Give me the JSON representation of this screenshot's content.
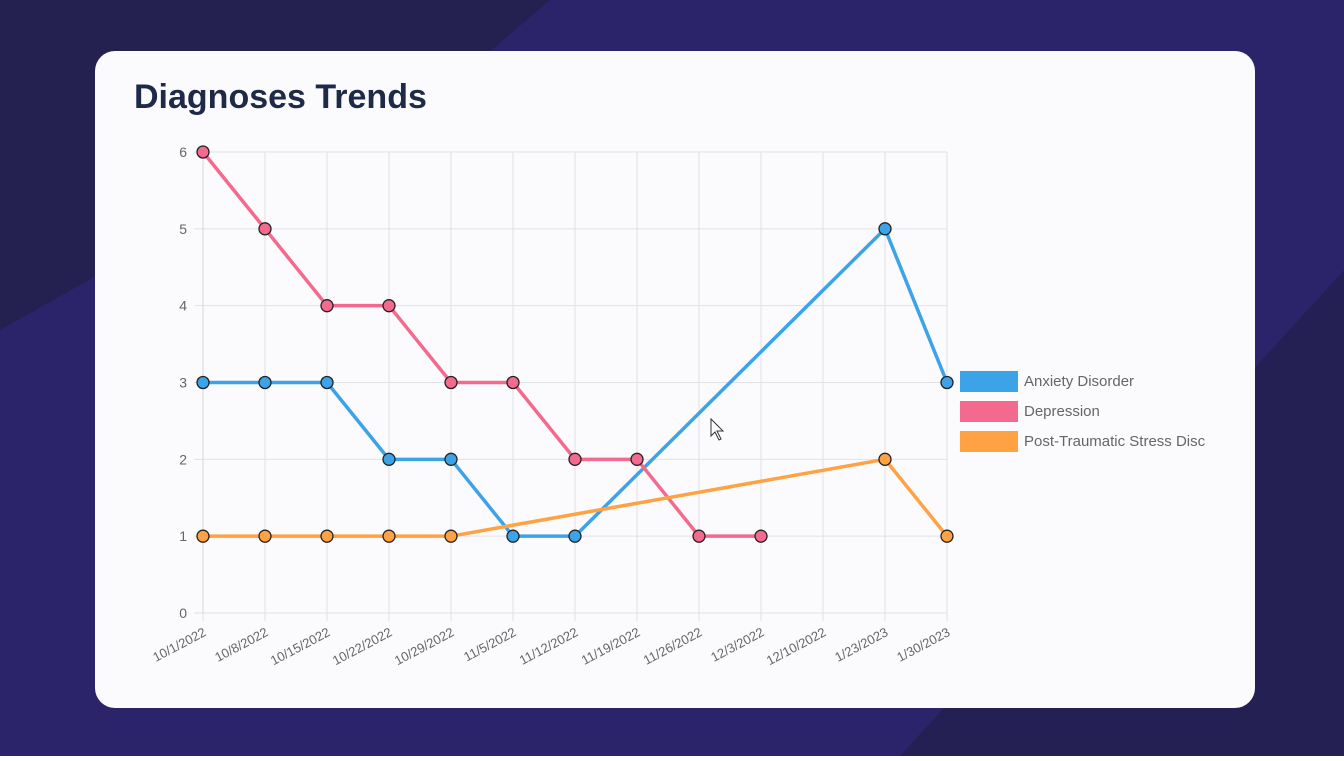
{
  "chart_data": {
    "type": "line",
    "title": "Diagnoses Trends",
    "categories": [
      "10/1/2022",
      "10/8/2022",
      "10/15/2022",
      "10/22/2022",
      "10/29/2022",
      "11/5/2022",
      "11/12/2022",
      "11/19/2022",
      "11/26/2022",
      "12/3/2022",
      "12/10/2022",
      "1/23/2023",
      "1/30/2023"
    ],
    "series": [
      {
        "name": "Anxiety Disorder",
        "color": "#3ca3e8",
        "values": [
          3,
          3,
          3,
          2,
          2,
          1,
          1,
          null,
          null,
          null,
          null,
          5,
          3
        ]
      },
      {
        "name": "Depression",
        "color": "#f4698e",
        "values": [
          6,
          5,
          4,
          4,
          3,
          3,
          2,
          2,
          1,
          1,
          null,
          null,
          null
        ]
      },
      {
        "name": "Post-Traumatic Stress Disc",
        "color": "#ffa243",
        "values": [
          1,
          1,
          1,
          1,
          1,
          null,
          null,
          null,
          null,
          null,
          null,
          2,
          1
        ]
      }
    ],
    "ylim": [
      0,
      6
    ],
    "yticks": [
      0,
      1,
      2,
      3,
      4,
      5,
      6
    ],
    "grid": true,
    "span_gaps": true,
    "legend": "right"
  }
}
